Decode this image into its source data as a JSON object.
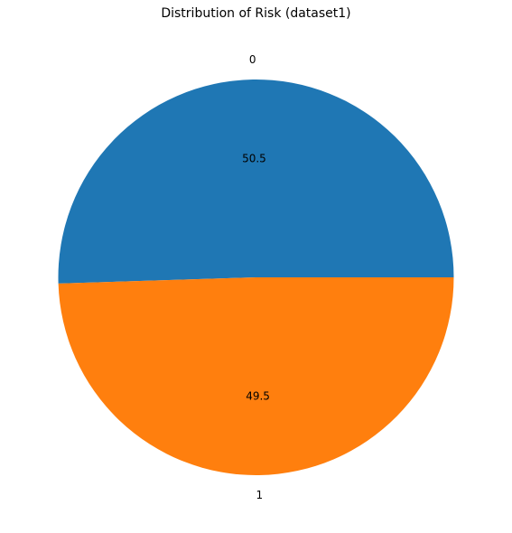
{
  "chart_data": {
    "type": "pie",
    "title": "Distribution of Risk (dataset1)",
    "slices": [
      {
        "label": "0",
        "value": 50.5,
        "pct_label": "50.5",
        "color": "#1f77b4"
      },
      {
        "label": "1",
        "value": 49.5,
        "pct_label": "49.5",
        "color": "#ff7f0e"
      }
    ],
    "start_angle_deg": 0,
    "direction": "counterclockwise",
    "legend": "none"
  }
}
